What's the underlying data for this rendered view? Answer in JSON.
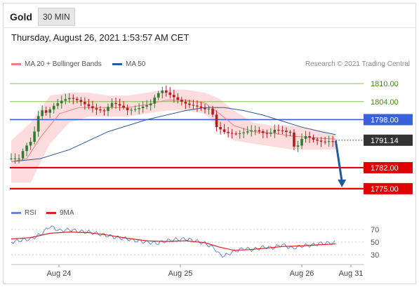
{
  "header": {
    "title": "Gold",
    "timeframe": "30 MIN"
  },
  "timestamp": "Thursday, August 26, 2021 1:53:57 AM CET",
  "legend": {
    "ma_bb": {
      "label": "MA 20 + Bollinger Bands",
      "color": "#f08080"
    },
    "ma50": {
      "label": "MA 50",
      "color": "#2a5a9a"
    }
  },
  "credit": "Research © 2021 Trading Central",
  "rsi_legend": {
    "rsi": {
      "label": "RSI",
      "color": "#6a8ad8"
    },
    "ma9": {
      "label": "9MA",
      "color": "#e02020"
    }
  },
  "colors": {
    "up": "#2e7d32",
    "down": "#b71c1c",
    "band": "#fbd3d3",
    "green_level": "#7cc44a",
    "blue_level": "#3a62d8",
    "red_level": "#e00000",
    "arrow": "#1f5a9a"
  },
  "chart_data": {
    "type": "candlestick",
    "x_ticks": [
      "Aug 24",
      "Aug 25",
      "Aug 26",
      "Aug 31"
    ],
    "y_range": [
      1771,
      1814
    ],
    "levels": [
      {
        "value": "1810.00",
        "style": "green"
      },
      {
        "value": "1804.00",
        "style": "green"
      },
      {
        "value": "1798.00",
        "style": "blue"
      },
      {
        "value": "1791.14",
        "style": "current"
      },
      {
        "value": "1782.00",
        "style": "red"
      },
      {
        "value": "1775.00",
        "style": "red"
      }
    ],
    "close_path": [
      [
        0,
        1785
      ],
      [
        8,
        1784.5
      ],
      [
        14,
        1788
      ],
      [
        22,
        1791
      ],
      [
        26,
        1797
      ],
      [
        30,
        1802
      ],
      [
        36,
        1801
      ],
      [
        44,
        1803
      ],
      [
        52,
        1804
      ],
      [
        60,
        1804.5
      ],
      [
        70,
        1804
      ],
      [
        80,
        1803
      ],
      [
        88,
        1802
      ],
      [
        96,
        1801
      ],
      [
        104,
        1803
      ],
      [
        112,
        1802
      ],
      [
        120,
        1801
      ],
      [
        128,
        1802
      ],
      [
        136,
        1803
      ],
      [
        144,
        1803.5
      ],
      [
        150,
        1806
      ],
      [
        156,
        1807
      ],
      [
        162,
        1806
      ],
      [
        170,
        1805
      ],
      [
        180,
        1804
      ],
      [
        190,
        1803
      ],
      [
        200,
        1801
      ],
      [
        206,
        1801
      ],
      [
        212,
        1795
      ],
      [
        220,
        1794
      ],
      [
        230,
        1794
      ],
      [
        240,
        1794
      ],
      [
        250,
        1794
      ],
      [
        260,
        1793
      ],
      [
        266,
        1793
      ],
      [
        272,
        1795
      ],
      [
        280,
        1795
      ],
      [
        288,
        1794
      ],
      [
        292,
        1789
      ],
      [
        296,
        1789
      ],
      [
        302,
        1792
      ],
      [
        312,
        1791
      ],
      [
        322,
        1791
      ],
      [
        328,
        1791.5
      ],
      [
        335,
        1791.1
      ]
    ],
    "ma20_path": [
      [
        0,
        1784
      ],
      [
        16,
        1785
      ],
      [
        30,
        1792
      ],
      [
        50,
        1800
      ],
      [
        70,
        1802
      ],
      [
        100,
        1802
      ],
      [
        120,
        1802
      ],
      [
        140,
        1803
      ],
      [
        160,
        1804.5
      ],
      [
        180,
        1804.5
      ],
      [
        200,
        1803.5
      ],
      [
        215,
        1800
      ],
      [
        230,
        1796
      ],
      [
        250,
        1794
      ],
      [
        270,
        1793.5
      ],
      [
        290,
        1792.5
      ],
      [
        310,
        1792
      ],
      [
        335,
        1791.5
      ]
    ],
    "bb_upper_path": [
      [
        0,
        1791
      ],
      [
        20,
        1797
      ],
      [
        40,
        1806
      ],
      [
        60,
        1807
      ],
      [
        80,
        1807
      ],
      [
        100,
        1806
      ],
      [
        120,
        1806
      ],
      [
        140,
        1807
      ],
      [
        160,
        1808
      ],
      [
        180,
        1808
      ],
      [
        200,
        1807
      ],
      [
        215,
        1805
      ],
      [
        230,
        1801
      ],
      [
        250,
        1797
      ],
      [
        270,
        1796
      ],
      [
        290,
        1796
      ],
      [
        310,
        1795
      ],
      [
        330,
        1793
      ],
      [
        335,
        1793
      ]
    ],
    "bb_lower_path": [
      [
        0,
        1777
      ],
      [
        20,
        1777
      ],
      [
        40,
        1790
      ],
      [
        60,
        1797
      ],
      [
        80,
        1799
      ],
      [
        100,
        1799
      ],
      [
        120,
        1799
      ],
      [
        140,
        1800
      ],
      [
        160,
        1801
      ],
      [
        180,
        1801
      ],
      [
        200,
        1800
      ],
      [
        215,
        1795
      ],
      [
        230,
        1791
      ],
      [
        250,
        1790
      ],
      [
        270,
        1789
      ],
      [
        290,
        1788
      ],
      [
        310,
        1788
      ],
      [
        330,
        1788
      ],
      [
        335,
        1788
      ]
    ],
    "ma50_path": [
      [
        0,
        1784
      ],
      [
        30,
        1785
      ],
      [
        60,
        1788
      ],
      [
        100,
        1794
      ],
      [
        140,
        1798
      ],
      [
        180,
        1801
      ],
      [
        200,
        1802
      ],
      [
        220,
        1802
      ],
      [
        240,
        1801
      ],
      [
        260,
        1799.5
      ],
      [
        280,
        1797.5
      ],
      [
        300,
        1795.5
      ],
      [
        320,
        1794
      ],
      [
        335,
        1793
      ]
    ],
    "rsi": {
      "ticks": [
        "70",
        "50",
        "30"
      ],
      "y_range": [
        20,
        80
      ],
      "rsi_path": [
        [
          0,
          50
        ],
        [
          10,
          53
        ],
        [
          20,
          55
        ],
        [
          30,
          62
        ],
        [
          40,
          75
        ],
        [
          50,
          68
        ],
        [
          60,
          70
        ],
        [
          70,
          67
        ],
        [
          80,
          66
        ],
        [
          90,
          63
        ],
        [
          100,
          60
        ],
        [
          110,
          57
        ],
        [
          120,
          55
        ],
        [
          130,
          52
        ],
        [
          140,
          50
        ],
        [
          150,
          48
        ],
        [
          160,
          52
        ],
        [
          170,
          54
        ],
        [
          180,
          55
        ],
        [
          190,
          52
        ],
        [
          200,
          48
        ],
        [
          210,
          40
        ],
        [
          215,
          30
        ],
        [
          220,
          28
        ],
        [
          230,
          35
        ],
        [
          240,
          40
        ],
        [
          250,
          38
        ],
        [
          260,
          42
        ],
        [
          270,
          41
        ],
        [
          280,
          46
        ],
        [
          290,
          40
        ],
        [
          300,
          44
        ],
        [
          310,
          45
        ],
        [
          320,
          48
        ],
        [
          335,
          49
        ]
      ],
      "ma9_path": [
        [
          0,
          55
        ],
        [
          20,
          57
        ],
        [
          40,
          64
        ],
        [
          60,
          66
        ],
        [
          80,
          65
        ],
        [
          100,
          61
        ],
        [
          120,
          56
        ],
        [
          140,
          52
        ],
        [
          160,
          51
        ],
        [
          180,
          52
        ],
        [
          200,
          49
        ],
        [
          215,
          42
        ],
        [
          230,
          37
        ],
        [
          245,
          38
        ],
        [
          260,
          40
        ],
        [
          280,
          43
        ],
        [
          300,
          44
        ],
        [
          320,
          46
        ],
        [
          335,
          47
        ]
      ]
    },
    "arrow": {
      "from": [
        335,
        1791
      ],
      "to": [
        340,
        1775
      ]
    }
  }
}
